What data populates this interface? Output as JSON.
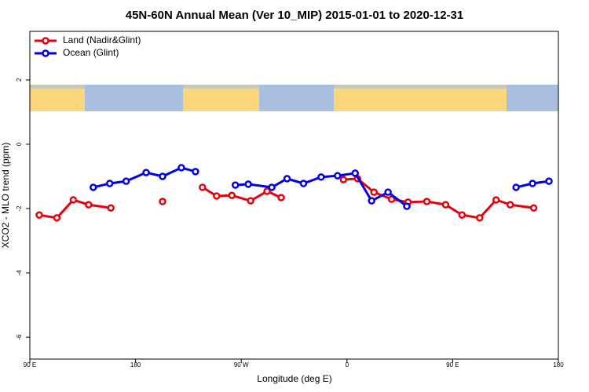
{
  "chart_data": {
    "type": "line",
    "title": "45N-60N Annual Mean (Ver 10_MIP)   2015-01-01 to 2020-12-31",
    "x_label": "Longitude (deg E)",
    "y_label": "XCO2 - MLO trend (ppm)",
    "xlim": [
      90,
      540
    ],
    "ylim": [
      -6.68,
      3.51
    ],
    "xticks": [
      {
        "value": 90,
        "label": "90 E"
      },
      {
        "value": 180,
        "label": "180"
      },
      {
        "value": 270,
        "label": "90 W"
      },
      {
        "value": 360,
        "label": "0"
      },
      {
        "value": 450,
        "label": "90 E"
      },
      {
        "value": 540,
        "label": "180"
      }
    ],
    "yticks": [
      2,
      0,
      -2,
      -4,
      -6
    ],
    "legend": "topleft",
    "series": [
      {
        "name": "Land (Nadir&Glint)",
        "color": "#e8000b",
        "x": [
          98,
          113,
          127,
          140,
          159,
          180,
          203,
          220,
          237,
          249,
          262,
          278,
          292,
          304,
          330,
          357,
          369,
          383,
          398,
          412,
          428,
          444,
          458,
          473,
          487,
          499,
          519
        ],
        "values": [
          -2.2,
          -2.29,
          -1.73,
          -1.88,
          -1.98,
          null,
          -1.78,
          null,
          -1.34,
          -1.61,
          -1.59,
          -1.76,
          -1.46,
          -1.66,
          null,
          -1.1,
          -1.07,
          -1.49,
          -1.71,
          -1.8,
          -1.78,
          -1.88,
          -2.2,
          -2.29,
          -1.73,
          -1.88,
          -1.98
        ]
      },
      {
        "name": "Ocean (Glint)",
        "color": "#0000e6",
        "x": [
          144,
          158,
          172,
          189,
          203,
          219,
          231,
          248,
          265,
          276,
          296,
          309,
          323,
          338,
          352,
          367,
          381,
          395,
          411,
          460,
          504,
          518,
          532
        ],
        "values": [
          -1.34,
          -1.22,
          -1.15,
          -0.88,
          -1.0,
          -0.73,
          -0.85,
          null,
          -1.27,
          -1.24,
          -1.34,
          -1.07,
          -1.22,
          -1.02,
          -0.98,
          -0.9,
          -1.76,
          -1.49,
          -1.93,
          null,
          -1.34,
          -1.22,
          -1.15
        ]
      }
    ]
  }
}
